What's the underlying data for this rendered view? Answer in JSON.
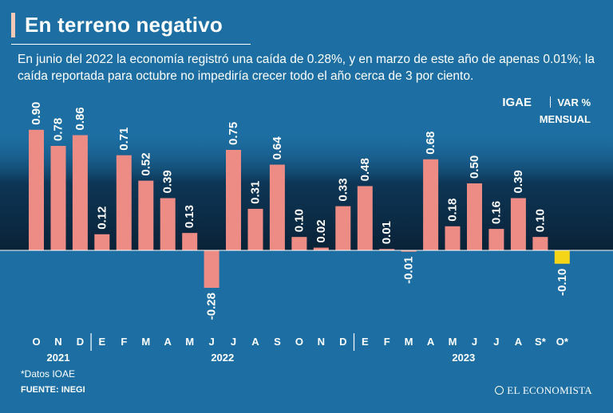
{
  "title": "En terreno negativo",
  "subtitle": "En junio del 2022 la economía registró una caída de 0.28%, y en marzo de este año de apenas 0.01%; la caída reportada para octubre no impediría crecer todo el año cerca de 3 por ciento.",
  "indicator": "IGAE",
  "unit_line1": "VAR %",
  "unit_line2": "MENSUAL",
  "footnote": "*Datos IOAE",
  "source": "FUENTE: INEGI",
  "brand": "EL ECONOMISTA",
  "colors": {
    "background": "#1d6fa3",
    "bar": "#ec8c85",
    "highlight": "#f4d518",
    "text": "#ffffff"
  },
  "chart_data": {
    "type": "bar",
    "title": "IGAE",
    "ylabel": "VAR % MENSUAL",
    "categories": [
      "O",
      "N",
      "D",
      "E",
      "F",
      "M",
      "A",
      "M",
      "J",
      "J",
      "A",
      "S",
      "O",
      "N",
      "D",
      "E",
      "F",
      "M",
      "A",
      "M",
      "J",
      "J",
      "A",
      "S*",
      "O*"
    ],
    "values": [
      0.9,
      0.78,
      0.86,
      0.12,
      0.71,
      0.52,
      0.39,
      0.13,
      -0.28,
      0.75,
      0.31,
      0.64,
      0.1,
      0.02,
      0.33,
      0.48,
      0.01,
      -0.01,
      0.68,
      0.18,
      0.5,
      0.16,
      0.39,
      0.1,
      -0.1
    ],
    "labels": [
      "0.90",
      "0.78",
      "0.86",
      "0.12",
      "0.71",
      "0.52",
      "0.39",
      "0.13",
      "-0.28",
      "0.75",
      "0.31",
      "0.64",
      "0.10",
      "0.02",
      "0.33",
      "0.48",
      "0.01",
      "-0.01",
      "0.68",
      "0.18",
      "0.50",
      "0.16",
      "0.39",
      "0.10",
      "-0.10"
    ],
    "highlight_index": 24,
    "year_groups": [
      {
        "label": "2021",
        "start": 0,
        "end": 2
      },
      {
        "label": "2022",
        "start": 3,
        "end": 14
      },
      {
        "label": "2023",
        "start": 15,
        "end": 24
      }
    ],
    "ylim": [
      -0.28,
      0.9
    ]
  }
}
